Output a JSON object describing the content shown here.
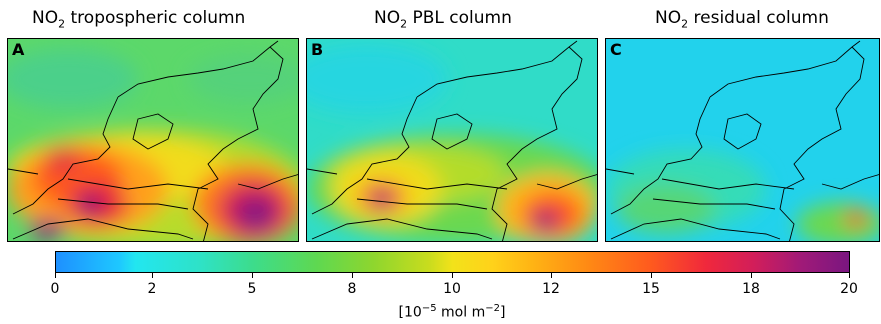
{
  "panels": [
    {
      "letter": "A",
      "title_main": "NO",
      "title_sub": "2",
      "title_rest": " tropospheric column"
    },
    {
      "letter": "B",
      "title_main": "NO",
      "title_sub": "2",
      "title_rest": " PBL column"
    },
    {
      "letter": "C",
      "title_main": "NO",
      "title_sub": "2",
      "title_rest": " residual column"
    }
  ],
  "colorbar": {
    "ticks": [
      "0",
      "2",
      "5",
      "8",
      "10",
      "12",
      "15",
      "18",
      "20"
    ],
    "unit_prefix": "[10",
    "unit_exp1": "−5",
    "unit_mid": " mol m",
    "unit_exp2": "−2",
    "unit_suffix": "]"
  }
}
